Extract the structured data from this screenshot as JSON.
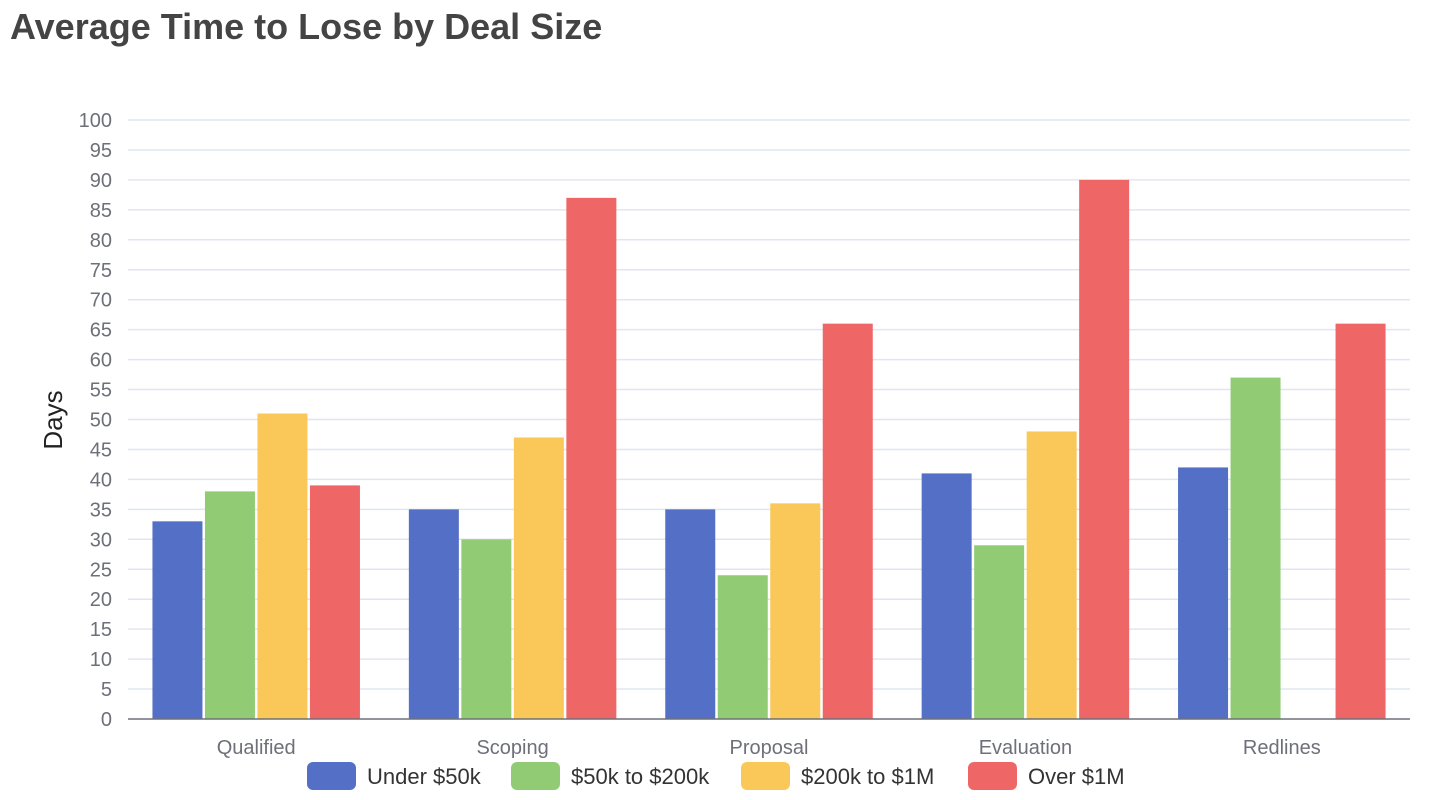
{
  "chart_data": {
    "type": "bar",
    "title": "Average Time to Lose by Deal Size",
    "xlabel": "",
    "ylabel": "Days",
    "ylim": [
      0,
      100
    ],
    "yticks": [
      0,
      5,
      10,
      15,
      20,
      25,
      30,
      35,
      40,
      45,
      50,
      55,
      60,
      65,
      70,
      75,
      80,
      85,
      90,
      95,
      100
    ],
    "grid": true,
    "legend_position": "bottom",
    "categories": [
      "Qualified",
      "Scoping",
      "Proposal",
      "Evaluation",
      "Redlines"
    ],
    "series": [
      {
        "name": "Under $50k",
        "color": "#5470c6",
        "values": [
          33,
          35,
          35,
          41,
          42
        ]
      },
      {
        "name": "$50k to $200k",
        "color": "#91cc75",
        "values": [
          38,
          30,
          24,
          29,
          57
        ]
      },
      {
        "name": "$200k to $1M",
        "color": "#fac858",
        "values": [
          51,
          47,
          36,
          48,
          null
        ]
      },
      {
        "name": "Over $1M",
        "color": "#ee6666",
        "values": [
          39,
          87,
          66,
          90,
          66
        ]
      }
    ]
  }
}
